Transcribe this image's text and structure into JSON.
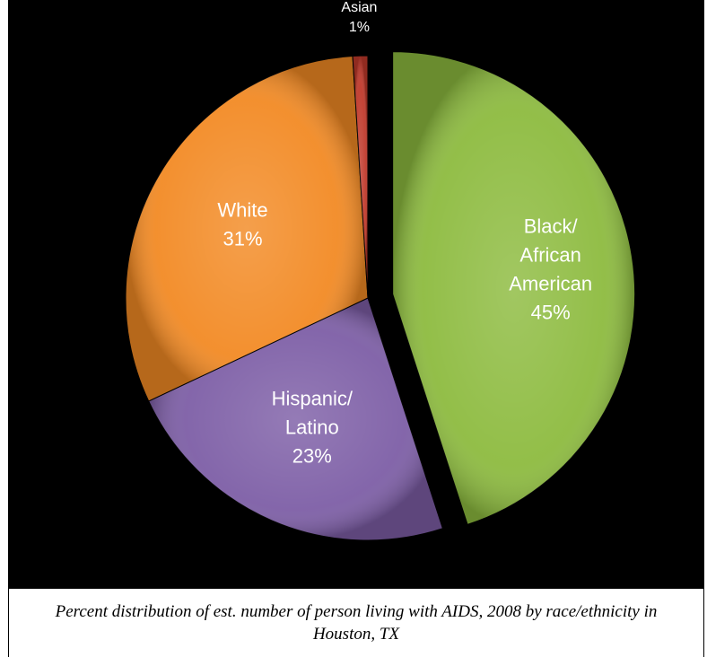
{
  "caption": "Percent distribution of est. number of person living with AIDS, 2008 by race/ethnicity in Houston, TX",
  "chart_data": {
    "type": "pie",
    "title": "",
    "legend": "none",
    "slices": [
      {
        "label_lines": [
          "Black/",
          "African",
          "American"
        ],
        "value": 45,
        "value_label": "45%",
        "color": "#8dbb3f"
      },
      {
        "label_lines": [
          "Hispanic/",
          "Latino"
        ],
        "value": 23,
        "value_label": "23%",
        "color": "#7d5ea6"
      },
      {
        "label_lines": [
          "White"
        ],
        "value": 31,
        "value_label": "31%",
        "color": "#f28a24"
      },
      {
        "label_lines": [
          "Asian"
        ],
        "value": 1,
        "value_label": "1%",
        "color": "#c0392b"
      }
    ]
  }
}
